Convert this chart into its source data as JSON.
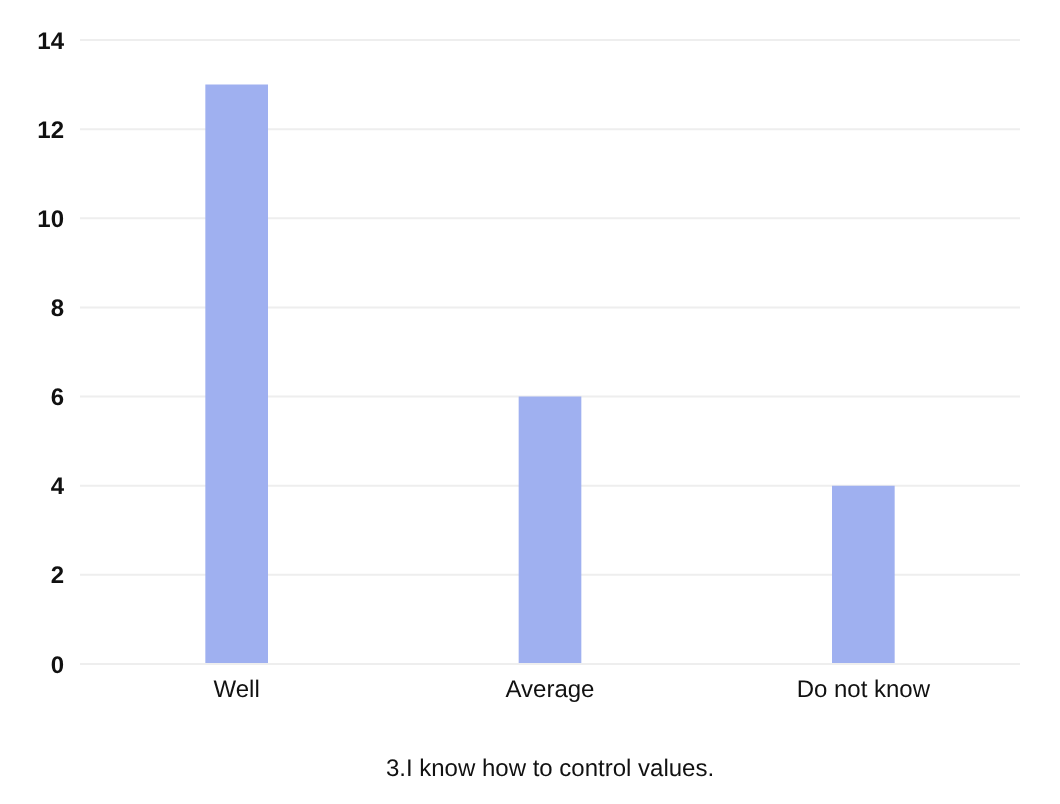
{
  "chart_data": {
    "type": "bar",
    "xlabel": "3.I know how to control values.",
    "categories": [
      "Well",
      "Average",
      "Do not know"
    ],
    "values": [
      13,
      6,
      4
    ],
    "color": "#9fb0f0",
    "ylim": [
      0,
      14
    ],
    "yticks": [
      0,
      2,
      4,
      6,
      8,
      10,
      12,
      14
    ],
    "grid": "y"
  }
}
